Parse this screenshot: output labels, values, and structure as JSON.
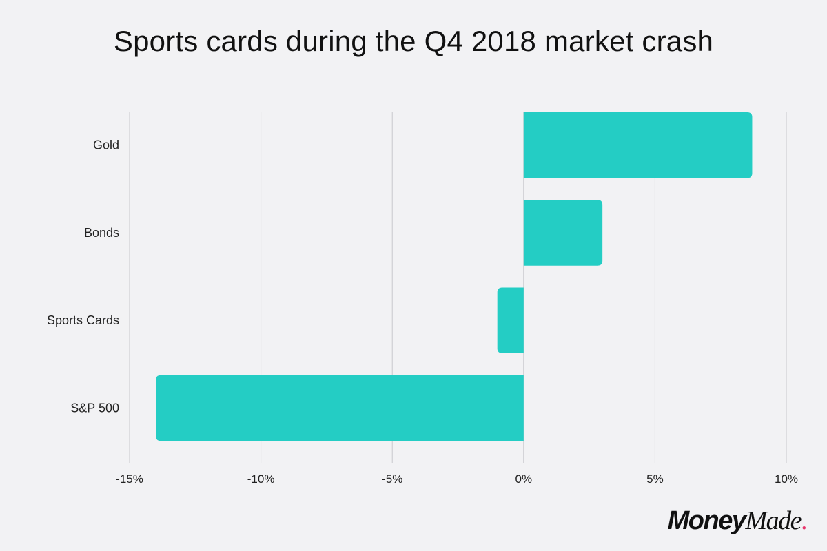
{
  "chart_data": {
    "type": "bar",
    "orientation": "horizontal",
    "title": "Sports cards during the Q4 2018 market crash",
    "categories": [
      "Gold",
      "Bonds",
      "Sports Cards",
      "S&P 500"
    ],
    "values": [
      8.7,
      3.0,
      -1.0,
      -14.0
    ],
    "unit": "%",
    "xlim": [
      -15,
      10
    ],
    "xticks": [
      -15,
      -10,
      -5,
      0,
      5,
      10
    ],
    "xtick_labels": [
      "-15%",
      "-10%",
      "-5%",
      "0%",
      "5%",
      "10%"
    ],
    "xlabel": "",
    "ylabel": "",
    "grid": "vertical",
    "legend": "none",
    "colors": {
      "bar": "#24cdc4",
      "grid": "#c8c8cc",
      "background": "#f2f2f4"
    }
  },
  "brand": {
    "logo_money": "Money",
    "logo_made": "Made",
    "logo_dot": "."
  }
}
